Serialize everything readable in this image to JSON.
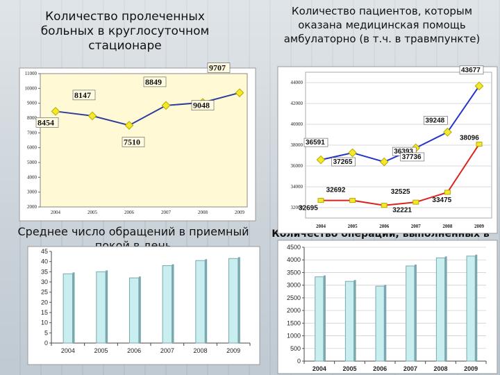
{
  "chart_data": [
    {
      "type": "line",
      "title": "Количество пролеченных больных в круглосуточном стационаре",
      "categories": [
        "2004",
        "2005",
        "2006",
        "2007",
        "2008",
        "2009"
      ],
      "values": [
        8454,
        8147,
        7510,
        8849,
        9048,
        9707
      ],
      "y_ticks": [
        "2000",
        "3000",
        "4000",
        "5000",
        "6000",
        "7000",
        "8000",
        "9000",
        "10000",
        "11000"
      ],
      "ylim": [
        2000,
        11000
      ],
      "grid": false,
      "colors": {
        "line": "#2c3e9e",
        "marker": "#f2e92a",
        "plot_bg": "#fff9d6"
      }
    },
    {
      "type": "line",
      "title": "Количество пациентов, которым оказана медицинская помощь амбулаторно (в т.ч. в травмпункте)",
      "categories": [
        "2004",
        "2005",
        "2006",
        "2007",
        "2008",
        "2009"
      ],
      "y_ticks": [
        "32000",
        "34000",
        "36000",
        "38000",
        "40000",
        "42000",
        "44000"
      ],
      "ylim": [
        31000,
        45000
      ],
      "grid": true,
      "series": [
        {
          "values": [
            36591,
            37265,
            36393,
            37736,
            39248,
            43677
          ],
          "color": "#2233cc",
          "marker": "#f2e92a"
        },
        {
          "values": [
            32695,
            32692,
            32221,
            32525,
            33475,
            38096
          ],
          "color": "#dd2222",
          "marker": "#f2e92a"
        }
      ]
    },
    {
      "type": "bar",
      "title": "Среднее число обращений в приемный покой в день",
      "categories": [
        "2004",
        "2005",
        "2006",
        "2007",
        "2008",
        "2009"
      ],
      "values": [
        34,
        35,
        32,
        38,
        40.5,
        41.5
      ],
      "y_ticks": [
        "0",
        "5",
        "10",
        "15",
        "20",
        "25",
        "30",
        "35",
        "40",
        "45"
      ],
      "ylim": [
        0,
        45
      ],
      "grid": false,
      "colors": {
        "bar": "#c8eef0",
        "bar_dark": "#7aa8ae"
      }
    },
    {
      "type": "bar",
      "title": "Количество операций, выполненных в НИИ НДХиТ",
      "categories": [
        "2004",
        "2005",
        "2006",
        "2007",
        "2008",
        "2009"
      ],
      "values": [
        3330,
        3150,
        2960,
        3760,
        4080,
        4150
      ],
      "y_ticks": [
        "0",
        "500",
        "1000",
        "1500",
        "2000",
        "2500",
        "3000",
        "3500",
        "4000",
        "4500"
      ],
      "ylim": [
        0,
        4500
      ],
      "grid": true,
      "colors": {
        "bar": "#c8eef0",
        "bar_dark": "#7aa8ae"
      }
    }
  ]
}
